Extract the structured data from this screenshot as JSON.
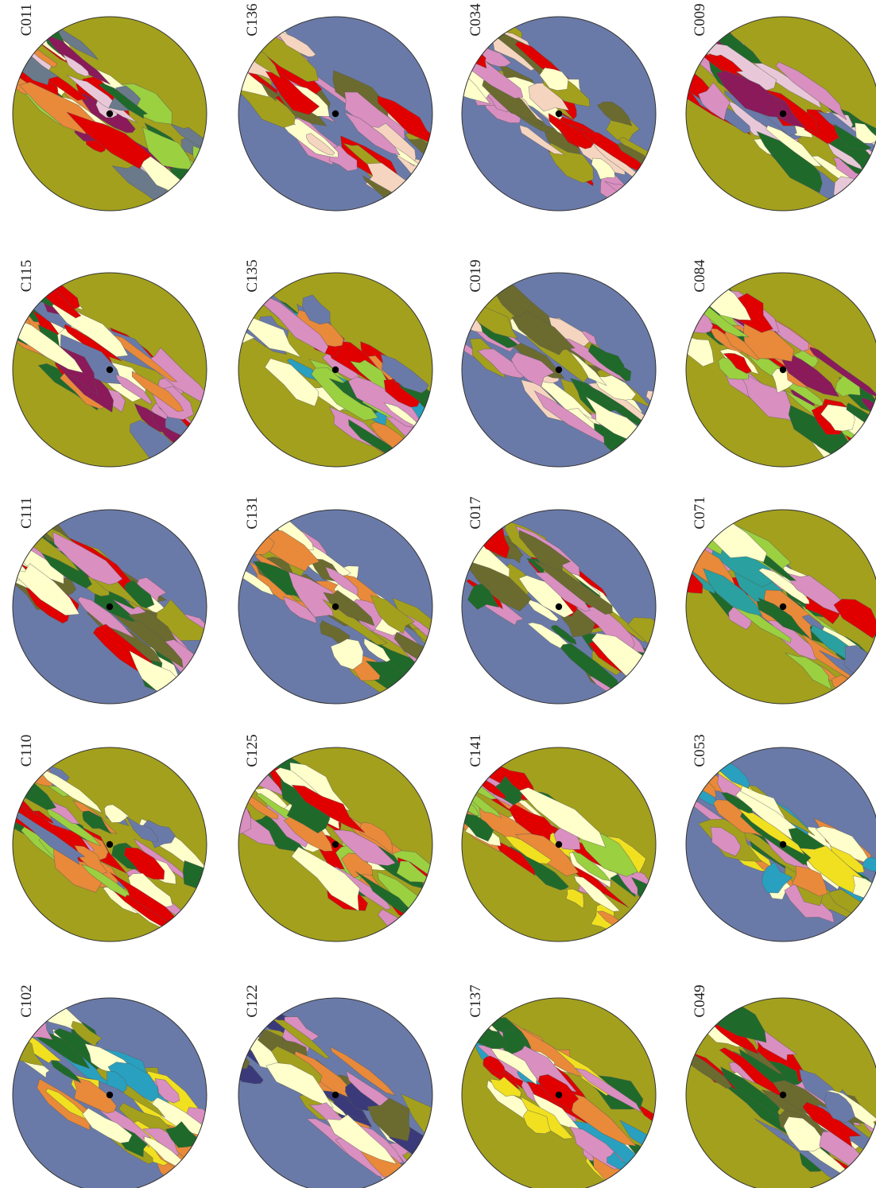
{
  "maps": [
    {
      "id": "C011",
      "base": "#a3a01e",
      "patches": [
        "#ffffcc",
        "#e8c8d8",
        "#6a7a8a",
        "#1f6a2a",
        "#e00000",
        "#9bd040",
        "#8a1a5a",
        "#e88a3a"
      ]
    },
    {
      "id": "C136",
      "base": "#6a7aa8",
      "patches": [
        "#a3a01e",
        "#6b6b30",
        "#d98fc0",
        "#ffffcc",
        "#e00000",
        "#f5d5c0"
      ]
    },
    {
      "id": "C034",
      "base": "#6a7aa8",
      "patches": [
        "#a3a01e",
        "#6b6b30",
        "#d98fc0",
        "#ffffcc",
        "#e00000",
        "#f5d5c0"
      ]
    },
    {
      "id": "C009",
      "base": "#a3a01e",
      "patches": [
        "#1f6a2a",
        "#ffffcc",
        "#e8c8d8",
        "#e00000",
        "#6a7aa8",
        "#d98fc0",
        "#8a1a5a"
      ]
    },
    {
      "id": "C115",
      "base": "#a3a01e",
      "patches": [
        "#1f6a2a",
        "#e00000",
        "#ffffcc",
        "#d98fc0",
        "#6a7aa8",
        "#8a1a5a",
        "#e88a3a"
      ]
    },
    {
      "id": "C135",
      "base": "#a3a01e",
      "patches": [
        "#1f6a2a",
        "#9bd040",
        "#ffffcc",
        "#d98fc0",
        "#6a7aa8",
        "#e00000",
        "#2aa0c0",
        "#e88a3a"
      ]
    },
    {
      "id": "C019",
      "base": "#6a7aa8",
      "patches": [
        "#a3a01e",
        "#6b6b30",
        "#d98fc0",
        "#ffffcc",
        "#f5d5c0",
        "#1f6a2a"
      ]
    },
    {
      "id": "C084",
      "base": "#a3a01e",
      "patches": [
        "#9bd040",
        "#1f6a2a",
        "#e00000",
        "#ffffcc",
        "#e88a3a",
        "#8a1a5a",
        "#d98fc0"
      ]
    },
    {
      "id": "C111",
      "base": "#6a7aa8",
      "patches": [
        "#6b6b30",
        "#a3a01e",
        "#d98fc0",
        "#ffffcc",
        "#e00000",
        "#1f6a2a"
      ]
    },
    {
      "id": "C131",
      "base": "#6a7aa8",
      "patches": [
        "#a3a01e",
        "#6b6b30",
        "#d98fc0",
        "#ffffcc",
        "#1f6a2a",
        "#e88a3a"
      ]
    },
    {
      "id": "C017",
      "base": "#6a7aa8",
      "patches": [
        "#a3a01e",
        "#6b6b30",
        "#d98fc0",
        "#ffffcc",
        "#e00000",
        "#1f6a2a"
      ]
    },
    {
      "id": "C071",
      "base": "#a3a01e",
      "patches": [
        "#e88a3a",
        "#6a7aa8",
        "#1f6a2a",
        "#ffffcc",
        "#e00000",
        "#2aa0a0",
        "#d98fc0",
        "#9bd040"
      ]
    },
    {
      "id": "C110",
      "base": "#a3a01e",
      "patches": [
        "#1f6a2a",
        "#ffffcc",
        "#e00000",
        "#6a7aa8",
        "#d98fc0",
        "#9bd040",
        "#e88a3a"
      ]
    },
    {
      "id": "C125",
      "base": "#a3a01e",
      "patches": [
        "#1f6a2a",
        "#e00000",
        "#ffffcc",
        "#9bd040",
        "#d98fc0",
        "#e88a3a"
      ]
    },
    {
      "id": "C141",
      "base": "#a3a01e",
      "patches": [
        "#1f6a2a",
        "#e00000",
        "#ffffcc",
        "#9bd040",
        "#d98fc0",
        "#e88a3a",
        "#f0e020"
      ]
    },
    {
      "id": "C053",
      "base": "#6a7aa8",
      "patches": [
        "#d98fc0",
        "#ffffcc",
        "#1f6a2a",
        "#a3a01e",
        "#2aa0c0",
        "#e88a3a",
        "#f0e020"
      ]
    },
    {
      "id": "C102",
      "base": "#6a7aa8",
      "patches": [
        "#d98fc0",
        "#a3a01e",
        "#1f6a2a",
        "#ffffcc",
        "#2aa0c0",
        "#f0e020",
        "#e88a3a"
      ]
    },
    {
      "id": "C122",
      "base": "#6a7aa8",
      "patches": [
        "#a3a01e",
        "#d98fc0",
        "#6b6b30",
        "#ffffcc",
        "#e88a3a",
        "#3a3a7a"
      ]
    },
    {
      "id": "C137",
      "base": "#a3a01e",
      "patches": [
        "#1f6a2a",
        "#e00000",
        "#ffffcc",
        "#f0e020",
        "#d98fc0",
        "#2aa0c0",
        "#e88a3a"
      ]
    },
    {
      "id": "C049",
      "base": "#a3a01e",
      "patches": [
        "#d98fc0",
        "#e00000",
        "#1f6a2a",
        "#6a7aa8",
        "#ffffcc",
        "#6b6b30"
      ]
    }
  ]
}
